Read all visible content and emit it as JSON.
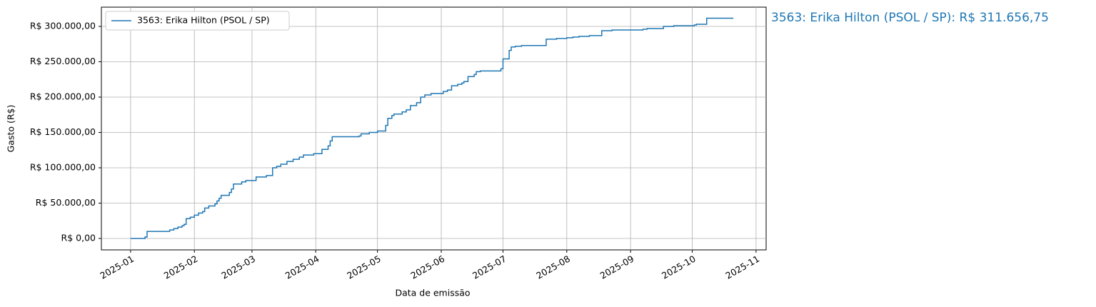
{
  "chart_data": {
    "type": "line",
    "drawstyle": "steps-post",
    "xlabel": "Data de emissão",
    "ylabel": "Gasto (R$)",
    "annotation": "3563: Erika Hilton (PSOL / SP): R$ 311.656,75",
    "grid": true,
    "legend": "upper left",
    "xlim": [
      -14.2,
      308.9
    ],
    "ylim": [
      -16160,
      327270
    ],
    "xticks": [
      {
        "value": 0,
        "label": "2025-01"
      },
      {
        "value": 31,
        "label": "2025-02"
      },
      {
        "value": 59,
        "label": "2025-03"
      },
      {
        "value": 90,
        "label": "2025-04"
      },
      {
        "value": 120,
        "label": "2025-05"
      },
      {
        "value": 151,
        "label": "2025-06"
      },
      {
        "value": 181,
        "label": "2025-07"
      },
      {
        "value": 212,
        "label": "2025-08"
      },
      {
        "value": 243,
        "label": "2025-09"
      },
      {
        "value": 273,
        "label": "2025-10"
      },
      {
        "value": 304,
        "label": "2025-11"
      }
    ],
    "yticks": [
      {
        "value": 0,
        "label": "R$ 0,00"
      },
      {
        "value": 50000,
        "label": "R$ 50.000,00"
      },
      {
        "value": 100000,
        "label": "R$ 100.000,00"
      },
      {
        "value": 150000,
        "label": "R$ 150.000,00"
      },
      {
        "value": 200000,
        "label": "R$ 200.000,00"
      },
      {
        "value": 250000,
        "label": "R$ 250.000,00"
      },
      {
        "value": 300000,
        "label": "R$ 300.000,00"
      }
    ],
    "series": [
      {
        "name": "3563: Erika Hilton (PSOL / SP)",
        "color": "#1f77b4",
        "x": [
          0,
          7,
          8,
          19,
          21,
          23,
          25,
          26,
          27,
          29,
          31,
          33,
          35,
          36,
          38,
          41,
          42,
          43,
          44,
          48,
          49,
          50,
          54,
          56,
          61,
          66,
          69,
          71,
          73,
          76,
          79,
          82,
          84,
          89,
          93,
          96,
          97,
          98,
          111,
          112,
          116,
          120,
          124,
          125,
          127,
          128,
          132,
          134,
          136,
          139,
          141,
          143,
          146,
          152,
          154,
          156,
          159,
          161,
          162,
          164,
          167,
          168,
          170,
          180,
          181,
          184,
          185,
          187,
          190,
          202,
          207,
          212,
          215,
          218,
          223,
          229,
          234,
          249,
          251,
          259,
          264,
          274,
          275,
          280,
          293
        ],
        "values": [
          0,
          2000,
          10000,
          12000,
          14000,
          16000,
          18000,
          20000,
          28000,
          30000,
          33000,
          36000,
          38000,
          43000,
          46000,
          49000,
          53000,
          57000,
          61000,
          65000,
          70000,
          77000,
          80000,
          82000,
          87000,
          89000,
          100000,
          102000,
          105000,
          109000,
          112000,
          115000,
          118000,
          120000,
          126000,
          131000,
          138000,
          144000,
          145000,
          148000,
          150000,
          152000,
          160000,
          170000,
          174000,
          176000,
          179000,
          182000,
          188000,
          192000,
          200000,
          203000,
          205000,
          208000,
          210000,
          216000,
          218000,
          220000,
          222000,
          229000,
          232000,
          236000,
          237000,
          240000,
          254000,
          266000,
          271000,
          272000,
          273000,
          282000,
          283000,
          284000,
          285000,
          286000,
          287000,
          294000,
          295000,
          296000,
          297000,
          300000,
          301000,
          302000,
          303000,
          311656.75,
          311656.75
        ]
      }
    ]
  }
}
